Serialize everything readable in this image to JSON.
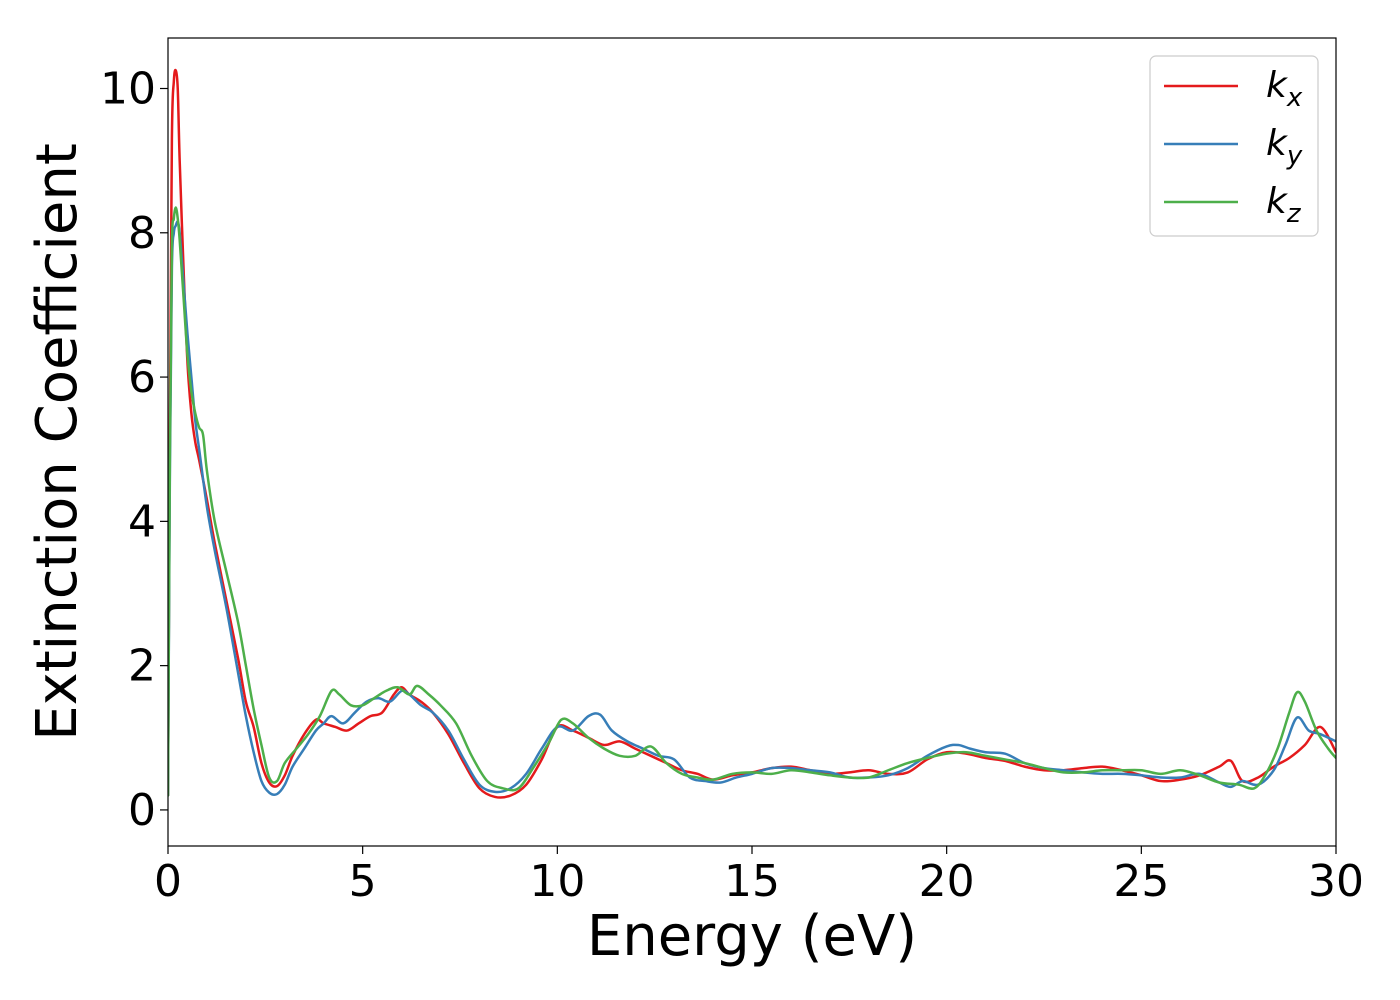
{
  "chart_data": {
    "type": "line",
    "title": "",
    "xlabel": "Energy (eV)",
    "ylabel": "Extinction Coefficient",
    "xlim": [
      0,
      30
    ],
    "ylim": [
      -0.5,
      10.7
    ],
    "xticks": [
      0,
      5,
      10,
      15,
      20,
      25,
      30
    ],
    "yticks": [
      0,
      2,
      4,
      6,
      8,
      10
    ],
    "grid": false,
    "legend_position": "top-right",
    "series": [
      {
        "name": "k_x",
        "label_base": "k",
        "label_sub": "x",
        "color": "#e41a1c",
        "x": [
          0,
          0.05,
          0.1,
          0.15,
          0.2,
          0.25,
          0.3,
          0.4,
          0.5,
          0.6,
          0.7,
          0.8,
          1.0,
          1.2,
          1.5,
          1.8,
          2.0,
          2.2,
          2.4,
          2.6,
          2.8,
          3.0,
          3.2,
          3.5,
          3.8,
          4.0,
          4.3,
          4.6,
          4.9,
          5.2,
          5.5,
          5.8,
          6.0,
          6.2,
          6.5,
          6.8,
          7.2,
          7.6,
          8.0,
          8.4,
          8.8,
          9.2,
          9.6,
          10.0,
          10.4,
          10.8,
          11.2,
          11.6,
          12.0,
          12.4,
          12.8,
          13.2,
          13.6,
          14.0,
          14.5,
          15.0,
          15.5,
          16.0,
          16.5,
          17.0,
          17.5,
          18.0,
          18.5,
          19.0,
          19.5,
          20.0,
          20.5,
          21.0,
          21.5,
          22.0,
          22.5,
          23.0,
          23.5,
          24.0,
          24.5,
          25.0,
          25.5,
          26.0,
          26.5,
          27.0,
          27.3,
          27.6,
          28.0,
          28.4,
          28.8,
          29.2,
          29.6,
          30.0
        ],
        "values": [
          0.2,
          5.5,
          9.3,
          10.1,
          10.25,
          10.0,
          9.0,
          7.5,
          6.2,
          5.5,
          5.1,
          4.85,
          4.3,
          3.7,
          2.9,
          2.1,
          1.5,
          1.15,
          0.65,
          0.38,
          0.33,
          0.48,
          0.75,
          1.05,
          1.25,
          1.2,
          1.15,
          1.1,
          1.2,
          1.3,
          1.35,
          1.6,
          1.7,
          1.6,
          1.5,
          1.35,
          1.05,
          0.65,
          0.3,
          0.18,
          0.2,
          0.35,
          0.7,
          1.15,
          1.1,
          1.0,
          0.9,
          0.95,
          0.85,
          0.75,
          0.65,
          0.55,
          0.5,
          0.42,
          0.48,
          0.52,
          0.58,
          0.6,
          0.55,
          0.5,
          0.52,
          0.55,
          0.5,
          0.52,
          0.7,
          0.8,
          0.78,
          0.72,
          0.68,
          0.6,
          0.55,
          0.55,
          0.58,
          0.6,
          0.55,
          0.48,
          0.4,
          0.42,
          0.48,
          0.6,
          0.68,
          0.4,
          0.45,
          0.6,
          0.72,
          0.9,
          1.15,
          0.8
        ]
      },
      {
        "name": "k_y",
        "label_base": "k",
        "label_sub": "y",
        "color": "#377eb8",
        "x": [
          0,
          0.05,
          0.1,
          0.15,
          0.2,
          0.25,
          0.3,
          0.4,
          0.5,
          0.6,
          0.7,
          0.8,
          1.0,
          1.2,
          1.5,
          1.8,
          2.0,
          2.2,
          2.4,
          2.6,
          2.8,
          3.0,
          3.2,
          3.5,
          3.8,
          4.0,
          4.2,
          4.5,
          4.8,
          5.1,
          5.4,
          5.7,
          6.0,
          6.2,
          6.5,
          6.8,
          7.2,
          7.6,
          8.0,
          8.4,
          8.8,
          9.2,
          9.6,
          10.0,
          10.4,
          10.8,
          11.1,
          11.4,
          11.8,
          12.2,
          12.6,
          13.0,
          13.4,
          13.8,
          14.2,
          14.6,
          15.0,
          15.5,
          16.0,
          16.5,
          17.0,
          17.5,
          18.0,
          18.5,
          19.0,
          19.5,
          20.0,
          20.3,
          20.6,
          21.0,
          21.5,
          22.0,
          22.5,
          23.0,
          23.5,
          24.0,
          24.5,
          25.0,
          25.5,
          26.0,
          26.5,
          27.0,
          27.3,
          27.6,
          28.0,
          28.4,
          28.7,
          29.0,
          29.3,
          29.6,
          30.0
        ],
        "values": [
          0.2,
          4.8,
          7.5,
          8.0,
          8.1,
          8.15,
          8.0,
          7.3,
          6.6,
          6.0,
          5.4,
          5.0,
          4.2,
          3.6,
          2.8,
          1.9,
          1.3,
          0.8,
          0.4,
          0.24,
          0.22,
          0.35,
          0.6,
          0.85,
          1.1,
          1.2,
          1.3,
          1.2,
          1.35,
          1.5,
          1.55,
          1.5,
          1.65,
          1.6,
          1.45,
          1.35,
          1.1,
          0.7,
          0.35,
          0.25,
          0.3,
          0.5,
          0.85,
          1.15,
          1.1,
          1.3,
          1.32,
          1.1,
          0.95,
          0.85,
          0.75,
          0.7,
          0.45,
          0.4,
          0.38,
          0.45,
          0.5,
          0.58,
          0.58,
          0.55,
          0.52,
          0.45,
          0.45,
          0.48,
          0.58,
          0.75,
          0.88,
          0.9,
          0.85,
          0.8,
          0.78,
          0.65,
          0.58,
          0.55,
          0.52,
          0.5,
          0.5,
          0.48,
          0.45,
          0.45,
          0.5,
          0.38,
          0.32,
          0.4,
          0.35,
          0.55,
          0.9,
          1.28,
          1.1,
          1.05,
          0.95
        ]
      },
      {
        "name": "k_z",
        "label_base": "k",
        "label_sub": "z",
        "color": "#4daf4a",
        "x": [
          0,
          0.05,
          0.1,
          0.15,
          0.2,
          0.25,
          0.3,
          0.4,
          0.5,
          0.6,
          0.7,
          0.8,
          0.9,
          1.0,
          1.2,
          1.5,
          1.8,
          2.0,
          2.2,
          2.4,
          2.6,
          2.8,
          3.0,
          3.3,
          3.6,
          3.9,
          4.2,
          4.4,
          4.7,
          5.0,
          5.3,
          5.6,
          5.9,
          6.2,
          6.4,
          6.7,
          7.0,
          7.4,
          7.8,
          8.2,
          8.6,
          9.0,
          9.4,
          9.8,
          10.1,
          10.4,
          10.8,
          11.2,
          11.6,
          12.0,
          12.4,
          12.8,
          13.2,
          13.6,
          14.0,
          14.5,
          15.0,
          15.5,
          16.0,
          16.5,
          17.0,
          17.5,
          18.0,
          18.5,
          19.0,
          19.5,
          20.0,
          20.5,
          21.0,
          21.5,
          22.0,
          22.5,
          23.0,
          23.5,
          24.0,
          24.5,
          25.0,
          25.5,
          26.0,
          26.5,
          27.0,
          27.5,
          27.9,
          28.2,
          28.5,
          28.8,
          29.0,
          29.2,
          29.5,
          29.8,
          30.0
        ],
        "values": [
          0.2,
          5.0,
          7.8,
          8.2,
          8.35,
          8.2,
          7.9,
          7.1,
          6.3,
          5.8,
          5.5,
          5.3,
          5.2,
          4.7,
          4.0,
          3.3,
          2.6,
          2.0,
          1.4,
          0.9,
          0.45,
          0.4,
          0.65,
          0.85,
          1.05,
          1.3,
          1.65,
          1.6,
          1.45,
          1.45,
          1.55,
          1.65,
          1.7,
          1.6,
          1.72,
          1.6,
          1.45,
          1.2,
          0.75,
          0.4,
          0.3,
          0.3,
          0.6,
          0.95,
          1.25,
          1.2,
          1.0,
          0.85,
          0.75,
          0.75,
          0.88,
          0.65,
          0.5,
          0.45,
          0.42,
          0.5,
          0.52,
          0.5,
          0.55,
          0.52,
          0.48,
          0.45,
          0.45,
          0.55,
          0.65,
          0.72,
          0.78,
          0.8,
          0.75,
          0.7,
          0.65,
          0.58,
          0.52,
          0.52,
          0.55,
          0.55,
          0.55,
          0.5,
          0.55,
          0.48,
          0.38,
          0.35,
          0.3,
          0.5,
          0.85,
          1.35,
          1.63,
          1.5,
          1.1,
          0.85,
          0.72
        ]
      }
    ]
  }
}
